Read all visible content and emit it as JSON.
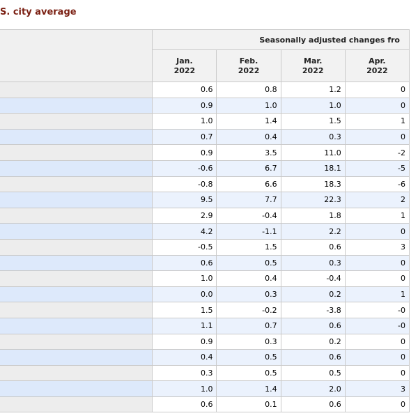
{
  "title": "S. city average",
  "table": {
    "group_header": "Seasonally adjusted changes fro",
    "months": [
      {
        "month": "Jan.",
        "year": "2022"
      },
      {
        "month": "Feb.",
        "year": "2022"
      },
      {
        "month": "Mar.",
        "year": "2022"
      },
      {
        "month": "Apr.",
        "year": "2022"
      }
    ],
    "rows": [
      [
        "0.6",
        "0.8",
        "1.2",
        "0"
      ],
      [
        "0.9",
        "1.0",
        "1.0",
        "0"
      ],
      [
        "1.0",
        "1.4",
        "1.5",
        "1"
      ],
      [
        "0.7",
        "0.4",
        "0.3",
        "0"
      ],
      [
        "0.9",
        "3.5",
        "11.0",
        "-2"
      ],
      [
        "-0.6",
        "6.7",
        "18.1",
        "-5"
      ],
      [
        "-0.8",
        "6.6",
        "18.3",
        "-6"
      ],
      [
        "9.5",
        "7.7",
        "22.3",
        "2"
      ],
      [
        "2.9",
        "-0.4",
        "1.8",
        "1"
      ],
      [
        "4.2",
        "-1.1",
        "2.2",
        "0"
      ],
      [
        "-0.5",
        "1.5",
        "0.6",
        "3"
      ],
      [
        "0.6",
        "0.5",
        "0.3",
        "0"
      ],
      [
        "1.0",
        "0.4",
        "-0.4",
        "0"
      ],
      [
        "0.0",
        "0.3",
        "0.2",
        "1"
      ],
      [
        "1.5",
        "-0.2",
        "-3.8",
        "-0"
      ],
      [
        "1.1",
        "0.7",
        "0.6",
        "-0"
      ],
      [
        "0.9",
        "0.3",
        "0.2",
        "0"
      ],
      [
        "0.4",
        "0.5",
        "0.6",
        "0"
      ],
      [
        "0.3",
        "0.5",
        "0.5",
        "0"
      ],
      [
        "1.0",
        "1.4",
        "2.0",
        "3"
      ],
      [
        "0.6",
        "0.1",
        "0.6",
        "0"
      ]
    ]
  }
}
